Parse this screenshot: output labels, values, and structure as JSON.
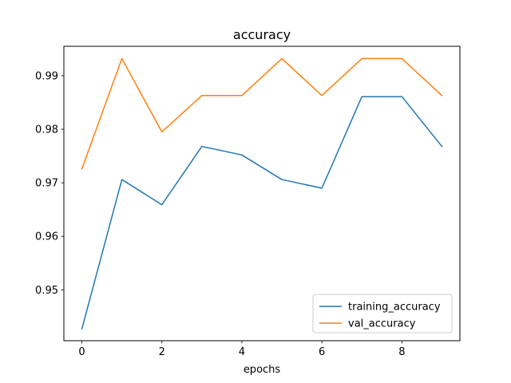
{
  "chart_data": {
    "type": "line",
    "title": "accuracy",
    "xlabel": "epochs",
    "ylabel": "",
    "x": [
      0,
      1,
      2,
      3,
      4,
      5,
      6,
      7,
      8,
      9
    ],
    "xlim": [
      -0.45,
      9.45
    ],
    "ylim": [
      0.9405,
      0.9955
    ],
    "xticks": [
      0,
      2,
      4,
      6,
      8
    ],
    "yticks": [
      0.95,
      0.96,
      0.97,
      0.98,
      0.99
    ],
    "grid": false,
    "legend_position": "lower-right",
    "series": [
      {
        "name": "training_accuracy",
        "color": "#1f77b4",
        "values": [
          0.9427,
          0.9706,
          0.9659,
          0.9768,
          0.9752,
          0.9706,
          0.969,
          0.9861,
          0.9861,
          0.9768
        ]
      },
      {
        "name": "val_accuracy",
        "color": "#ff7f0e",
        "values": [
          0.9726,
          0.9932,
          0.9795,
          0.9863,
          0.9863,
          0.9932,
          0.9863,
          0.9932,
          0.9932,
          0.9863
        ]
      }
    ]
  }
}
